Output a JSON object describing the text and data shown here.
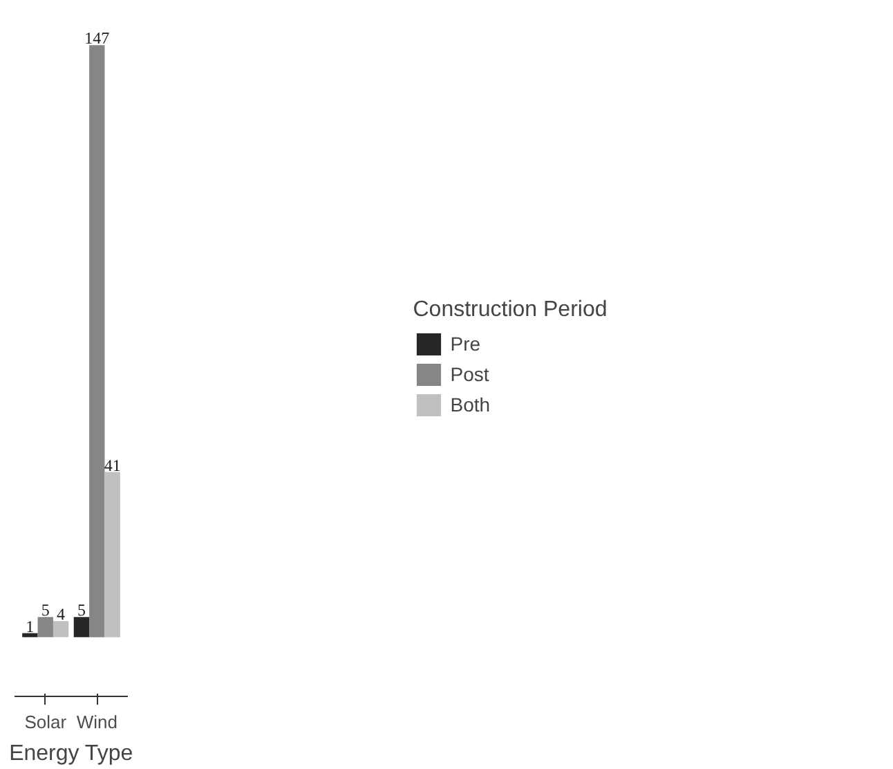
{
  "chart_data": {
    "type": "bar",
    "xlabel": "Energy Type",
    "legend_title": "Construction Period",
    "categories": [
      "Solar",
      "Wind"
    ],
    "series": [
      {
        "name": "Pre",
        "color": "#262626",
        "values": [
          1,
          5
        ]
      },
      {
        "name": "Post",
        "color": "#868686",
        "values": [
          5,
          147
        ]
      },
      {
        "name": "Both",
        "color": "#c0c0c0",
        "values": [
          4,
          41
        ]
      }
    ],
    "data_labels": true,
    "grid": false,
    "legend": "right"
  }
}
